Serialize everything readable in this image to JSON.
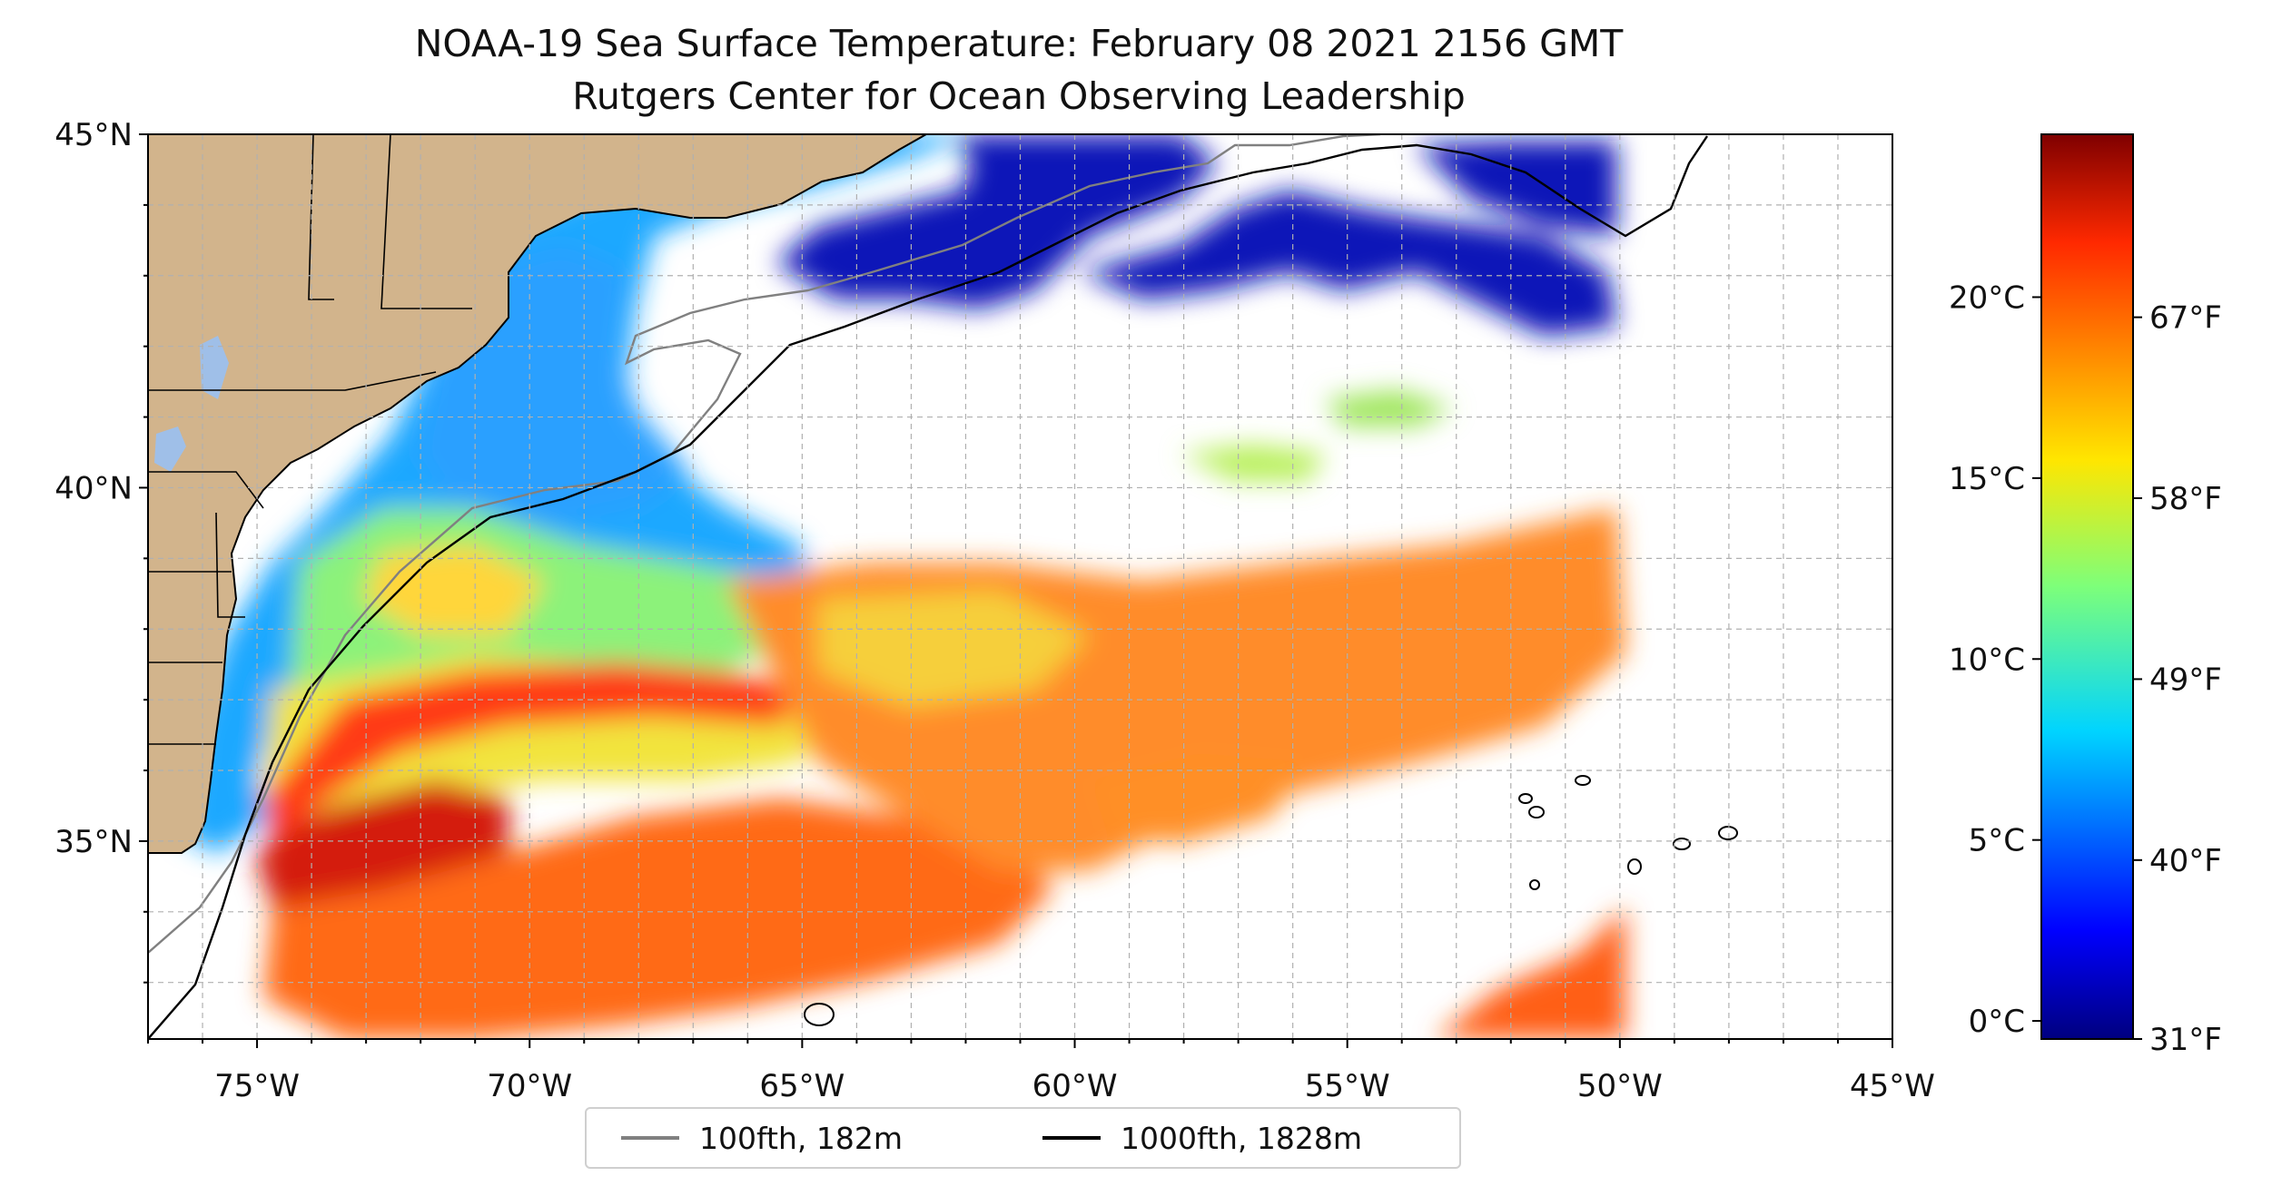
{
  "title": {
    "line1": "NOAA-19 Sea Surface Temperature: February 08 2021 2156 GMT",
    "line2": "Rutgers Center for Ocean Observing Leadership"
  },
  "map": {
    "projection": "plate-carree",
    "lon_range": [
      -77,
      -45
    ],
    "lat_range": [
      32.2,
      45
    ],
    "gridlines": true,
    "coastline_color": "#000000",
    "land_color": "#d2b48c",
    "lakes_color": "#9fbfe8",
    "lon_ticks": [
      "75°W",
      "70°W",
      "65°W",
      "60°W",
      "55°W",
      "50°W",
      "45°W"
    ],
    "lat_ticks": [
      "45°N",
      "40°N",
      "35°N"
    ]
  },
  "colorbar": {
    "colormap": "jet",
    "range_c": [
      -0.5,
      24.5
    ],
    "celsius_ticks": [
      "0°C",
      "5°C",
      "10°C",
      "15°C",
      "20°C"
    ],
    "fahrenheit_ticks": [
      "31°F",
      "40°F",
      "49°F",
      "58°F",
      "67°F"
    ]
  },
  "legend": {
    "placement": "bottom-center",
    "entries": [
      {
        "label": "100fth, 182m",
        "color": "#808080"
      },
      {
        "label": "1000fth, 1828m",
        "color": "#000000"
      }
    ]
  }
}
